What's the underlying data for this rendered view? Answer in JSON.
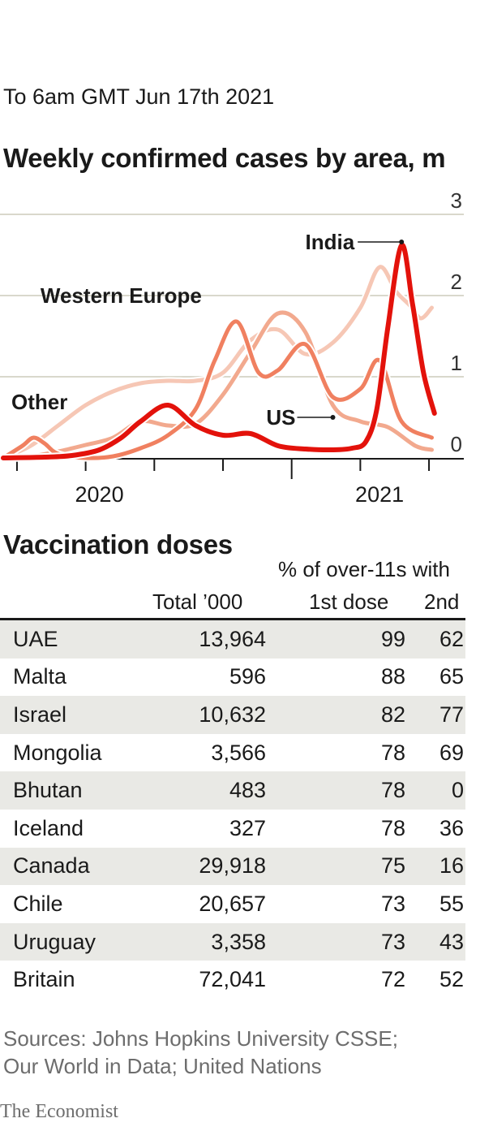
{
  "header": {
    "date": "To 6am GMT Jun 17th 2021",
    "title": "Weekly confirmed cases by area, m"
  },
  "colors": {
    "india": "#e3120b",
    "western_europe": "#f08060",
    "us": "#f2a98e",
    "other": "#f6c7b5",
    "grid": "#d9d8cc",
    "axis": "#1a1a1a"
  },
  "chart_data": {
    "type": "line",
    "title": "Weekly confirmed cases by area, m",
    "xlabel": "",
    "ylabel": "m",
    "ylim": [
      0,
      3
    ],
    "yticks": [
      0,
      1,
      2,
      3
    ],
    "xlim": [
      2019.95,
      2021.55
    ],
    "xtick_labels": [
      {
        "x": 2020.3,
        "label": "2020"
      },
      {
        "x": 2021.32,
        "label": "2021"
      }
    ],
    "series": [
      {
        "name": "Other",
        "color": "#f6c7b5",
        "x": [
          2019.95,
          2020.05,
          2020.15,
          2020.25,
          2020.35,
          2020.45,
          2020.55,
          2020.65,
          2020.75,
          2020.85,
          2020.95,
          2021.05,
          2021.15,
          2021.25,
          2021.32,
          2021.38,
          2021.43,
          2021.47,
          2021.51
        ],
        "values": [
          0.0,
          0.15,
          0.4,
          0.65,
          0.82,
          0.92,
          0.95,
          0.95,
          1.05,
          1.45,
          1.58,
          1.28,
          1.42,
          1.85,
          2.35,
          2.05,
          1.88,
          1.72,
          1.85
        ]
      },
      {
        "name": "US",
        "color": "#f2a98e",
        "x": [
          2019.95,
          2020.05,
          2020.15,
          2020.25,
          2020.35,
          2020.45,
          2020.55,
          2020.65,
          2020.75,
          2020.85,
          2020.95,
          2021.05,
          2021.15,
          2021.25,
          2021.35,
          2021.45,
          2021.51
        ],
        "values": [
          0.0,
          0.02,
          0.08,
          0.16,
          0.25,
          0.45,
          0.4,
          0.42,
          0.78,
          1.3,
          1.78,
          1.55,
          0.65,
          0.45,
          0.38,
          0.15,
          0.1
        ]
      },
      {
        "name": "Western Europe",
        "color": "#f08060",
        "x": [
          2019.95,
          2020.02,
          2020.06,
          2020.1,
          2020.15,
          2020.25,
          2020.35,
          2020.45,
          2020.55,
          2020.65,
          2020.72,
          2020.8,
          2020.88,
          2020.95,
          2021.05,
          2021.15,
          2021.25,
          2021.32,
          2021.4,
          2021.51
        ],
        "values": [
          0.0,
          0.15,
          0.25,
          0.18,
          0.05,
          0.0,
          0.02,
          0.12,
          0.28,
          0.6,
          1.2,
          1.68,
          1.05,
          1.08,
          1.4,
          0.75,
          0.85,
          1.2,
          0.45,
          0.25
        ]
      },
      {
        "name": "India",
        "color": "#e3120b",
        "x": [
          2019.95,
          2020.1,
          2020.2,
          2020.3,
          2020.38,
          2020.45,
          2020.55,
          2020.65,
          2020.75,
          2020.85,
          2020.95,
          2021.05,
          2021.15,
          2021.22,
          2021.27,
          2021.31,
          2021.35,
          2021.4,
          2021.44,
          2021.48,
          2021.52
        ],
        "values": [
          0.0,
          0.01,
          0.03,
          0.1,
          0.25,
          0.45,
          0.65,
          0.4,
          0.28,
          0.3,
          0.15,
          0.11,
          0.1,
          0.12,
          0.2,
          0.6,
          1.6,
          2.62,
          1.9,
          1.05,
          0.55
        ]
      }
    ],
    "annotations": [
      {
        "label": "India",
        "x": 2021.4,
        "y": 2.66
      },
      {
        "label": "Western Europe",
        "x": 2020.72,
        "y": 1.65
      },
      {
        "label": "US",
        "x": 2021.15,
        "y": 0.5
      },
      {
        "label": "Other",
        "x": 2020.0,
        "y": 0.68
      }
    ]
  },
  "vaccination": {
    "title": "Vaccination doses",
    "group_header": "% of over-11s with",
    "columns": [
      "Total ’000",
      "1st dose",
      "2nd"
    ],
    "rows": [
      {
        "country": "UAE",
        "total": "13,964",
        "first": "99",
        "second": "62"
      },
      {
        "country": "Malta",
        "total": "596",
        "first": "88",
        "second": "65"
      },
      {
        "country": "Israel",
        "total": "10,632",
        "first": "82",
        "second": "77"
      },
      {
        "country": "Mongolia",
        "total": "3,566",
        "first": "78",
        "second": "69"
      },
      {
        "country": "Bhutan",
        "total": "483",
        "first": "78",
        "second": "0"
      },
      {
        "country": "Iceland",
        "total": "327",
        "first": "78",
        "second": "36"
      },
      {
        "country": "Canada",
        "total": "29,918",
        "first": "75",
        "second": "16"
      },
      {
        "country": "Chile",
        "total": "20,657",
        "first": "73",
        "second": "55"
      },
      {
        "country": "Uruguay",
        "total": "3,358",
        "first": "73",
        "second": "43"
      },
      {
        "country": "Britain",
        "total": "72,041",
        "first": "72",
        "second": "52"
      }
    ]
  },
  "footer": {
    "source_line1": "Sources: Johns Hopkins University CSSE;",
    "source_line2": "Our World in Data; United Nations",
    "brand": "The Economist"
  }
}
